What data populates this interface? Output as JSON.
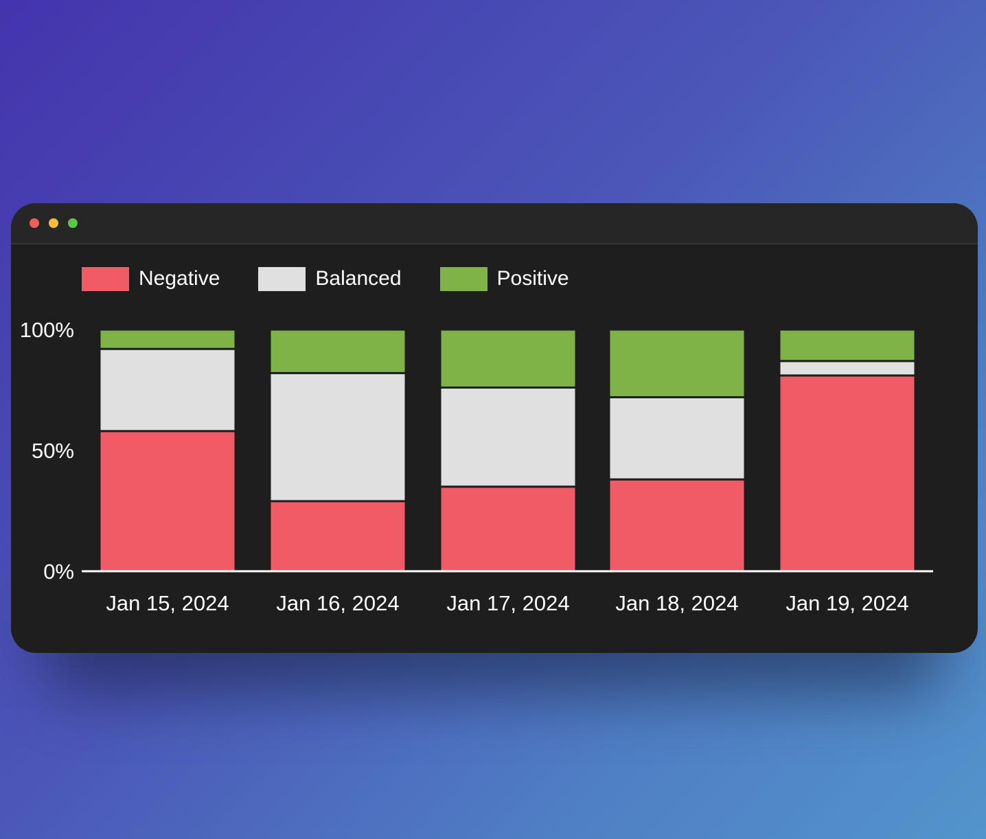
{
  "window": {
    "controls": {
      "close_color": "#ee5d56",
      "minimize_color": "#f5bd3a",
      "maximize_color": "#5ec54b"
    }
  },
  "chart_data": {
    "type": "bar",
    "stacked": true,
    "normalized": true,
    "title": "",
    "xlabel": "",
    "ylabel": "",
    "ylim": [
      0,
      100
    ],
    "yticks": [
      "0%",
      "50%",
      "100%"
    ],
    "grid": false,
    "legend_position": "top-left",
    "categories": [
      "Jan 15, 2024",
      "Jan 16, 2024",
      "Jan 17, 2024",
      "Jan 18, 2024",
      "Jan 19, 2024"
    ],
    "series": [
      {
        "name": "Negative",
        "color": "#f05b66",
        "values": [
          58,
          29,
          35,
          38,
          81
        ]
      },
      {
        "name": "Balanced",
        "color": "#e0e0e0",
        "values": [
          34,
          53,
          41,
          34,
          6
        ]
      },
      {
        "name": "Positive",
        "color": "#7fb247",
        "values": [
          8,
          18,
          24,
          28,
          13
        ]
      }
    ]
  }
}
